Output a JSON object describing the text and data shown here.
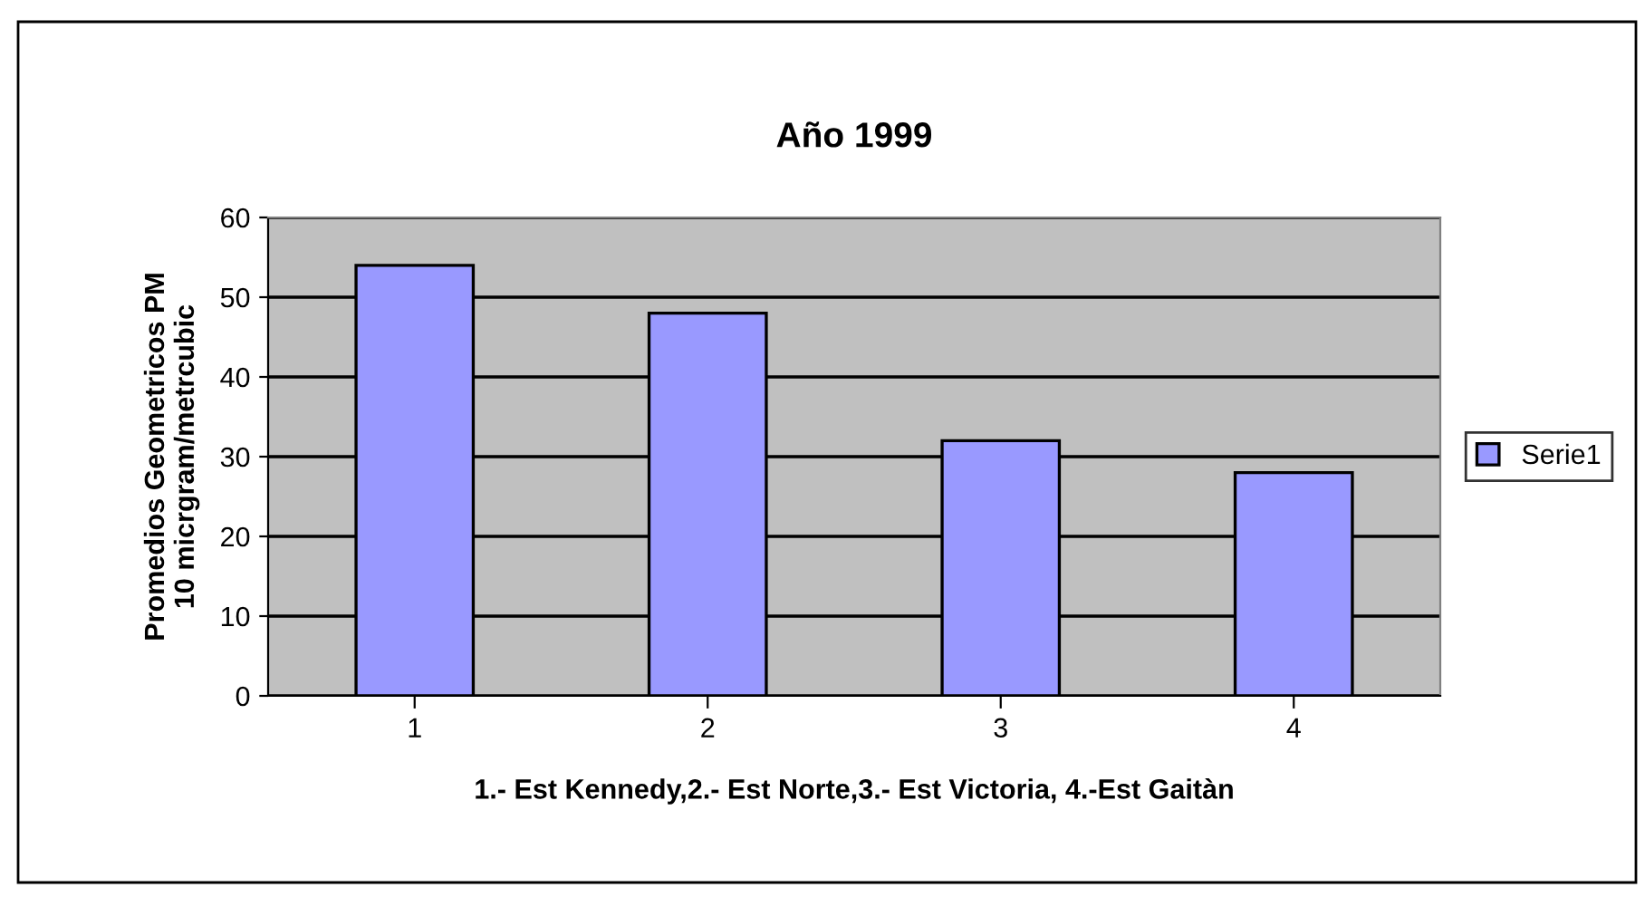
{
  "chart_data": {
    "type": "bar",
    "title": "Año 1999",
    "xlabel": "1.- Est Kennedy,2.- Est Norte,3.- Est Victoria, 4.-Est Gaitàn",
    "ylabel": "Promedios Geometricos PM\n10 micrgram/metrcubic",
    "categories": [
      "1",
      "2",
      "3",
      "4"
    ],
    "series": [
      {
        "name": "Serie1",
        "color": "#9999ff",
        "values": [
          54,
          48,
          32,
          28
        ]
      }
    ],
    "ylim": [
      0,
      60
    ],
    "yticks": [
      0,
      10,
      20,
      30,
      40,
      50,
      60
    ],
    "grid": "y",
    "legend": "right"
  }
}
